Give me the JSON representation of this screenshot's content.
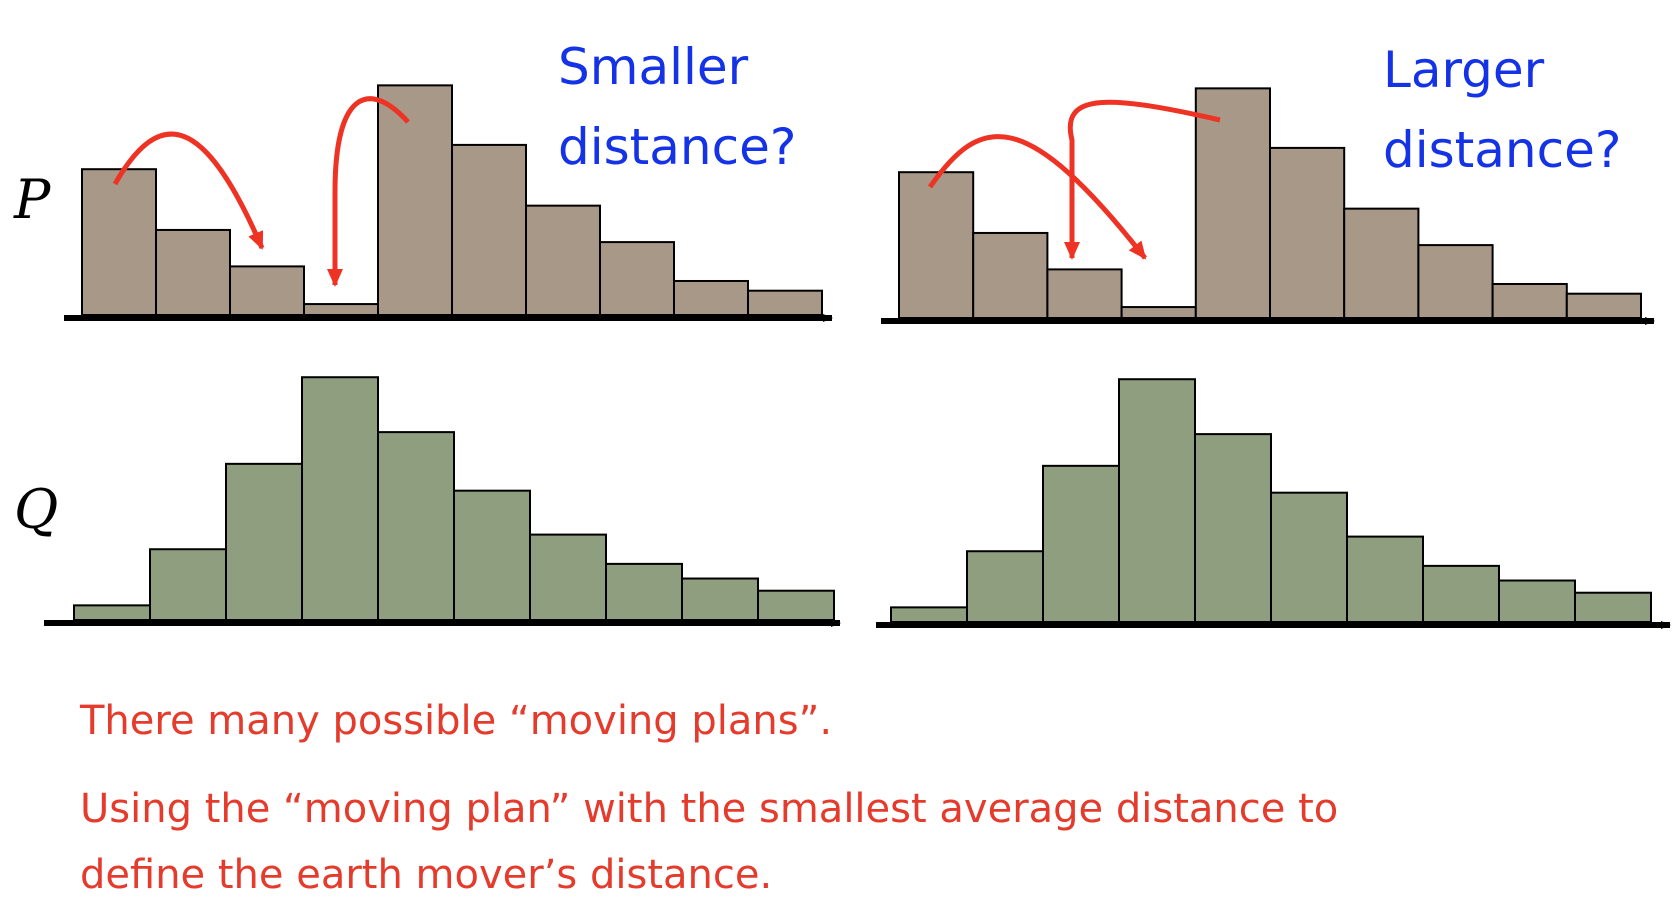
{
  "colors": {
    "p_fill": "#a89888",
    "q_fill": "#8e9e7e",
    "arrow": "#ee3324",
    "question": "#1432e6",
    "caption": "#e53b2c"
  },
  "labels": {
    "p": "P",
    "q": "Q"
  },
  "questions": {
    "left": "Smaller\ndistance?",
    "right": "Larger\ndistance?"
  },
  "captions": [
    "There many possible “moving plans”.",
    "Using the “moving plan” with the smallest average distance to\ndefine the earth mover’s distance."
  ],
  "histograms": {
    "p": [
      0.6,
      0.35,
      0.2,
      0.045,
      0.945,
      0.7,
      0.45,
      0.3,
      0.14,
      0.1
    ],
    "q": [
      0.06,
      0.29,
      0.64,
      0.995,
      0.77,
      0.53,
      0.35,
      0.23,
      0.17,
      0.12
    ]
  }
}
